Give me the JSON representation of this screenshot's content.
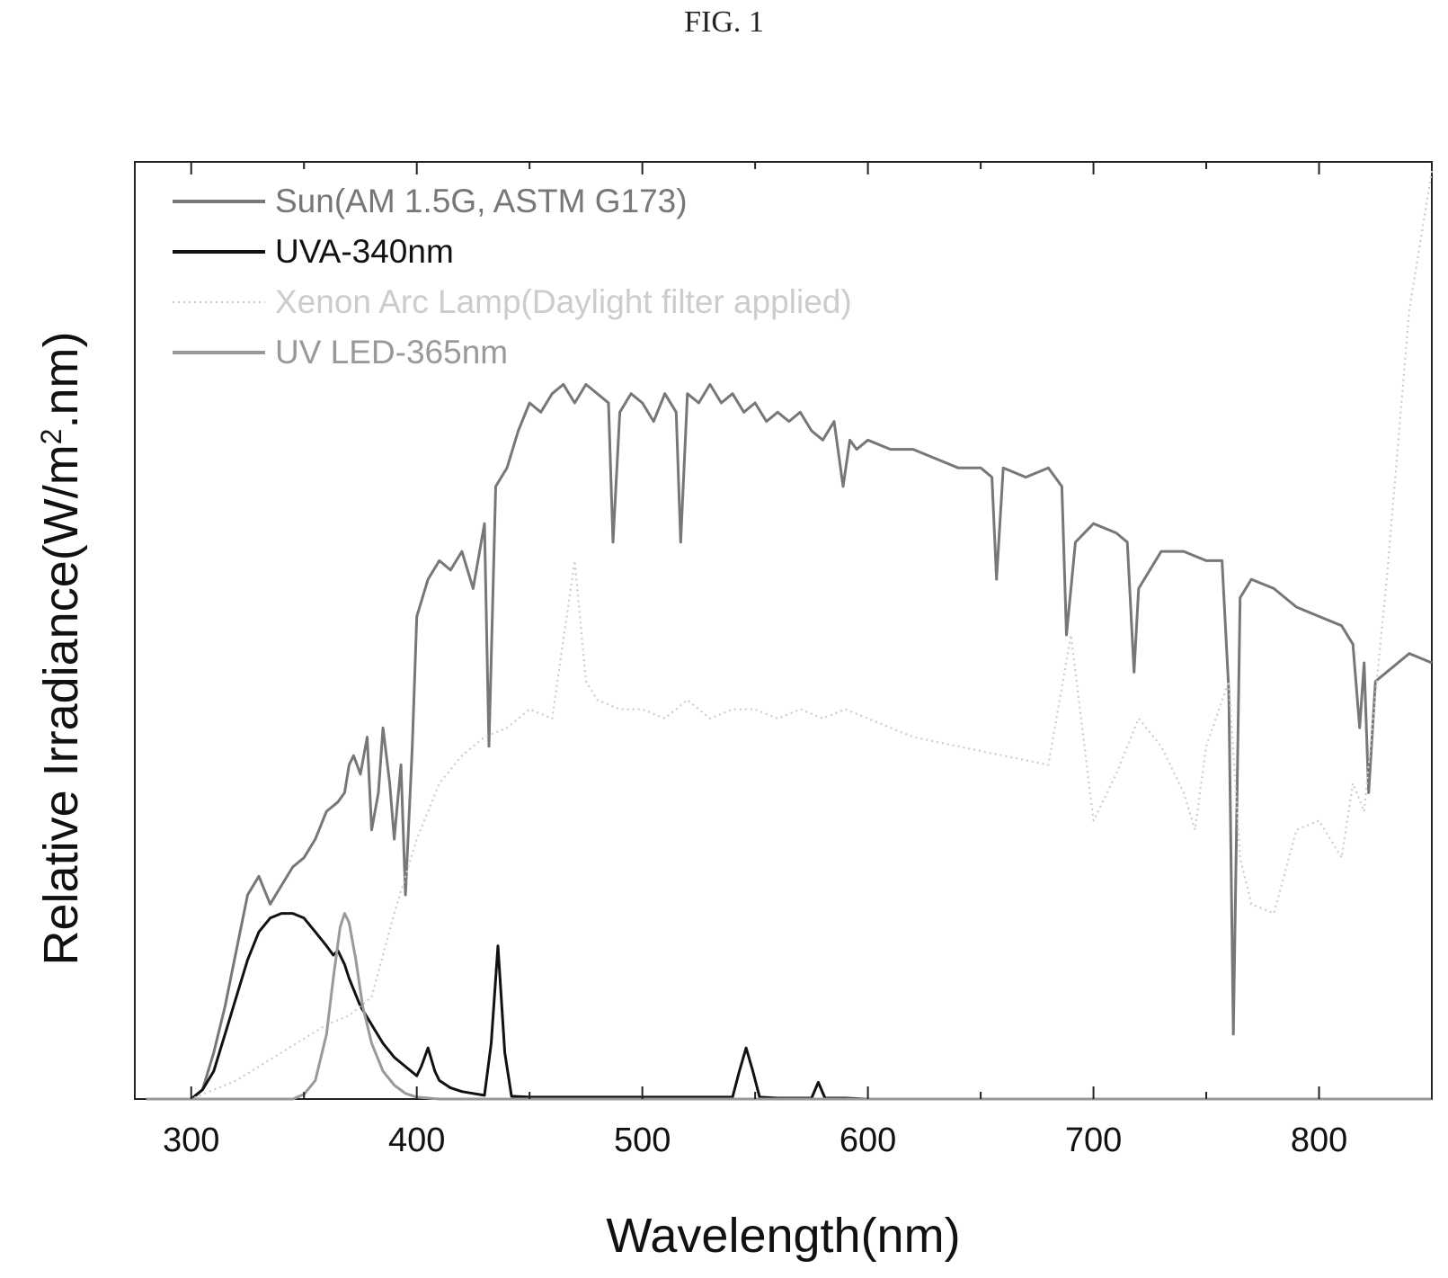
{
  "figure_label": "FIG. 1",
  "chart_data": {
    "type": "line",
    "title": "",
    "xlabel": "Wavelength(nm)",
    "ylabel_main": "Relative Irradiance(W/m",
    "ylabel_sup": "2",
    "ylabel_tail": ".nm)",
    "xlim": [
      275,
      850
    ],
    "ylim": [
      0,
      1.0
    ],
    "x_ticks": [
      300,
      400,
      500,
      600,
      700,
      800
    ],
    "y_tick_labels_shown": false,
    "grid": false,
    "legend_position": "top-left",
    "series": [
      {
        "name": "Sun(AM 1.5G, ASTM G173)",
        "color": "#777777",
        "style": "solid",
        "x": [
          280,
          300,
          305,
          310,
          315,
          320,
          325,
          330,
          335,
          340,
          345,
          350,
          355,
          360,
          365,
          368,
          370,
          372,
          375,
          378,
          380,
          383,
          385,
          388,
          390,
          393,
          395,
          398,
          400,
          405,
          410,
          415,
          420,
          425,
          430,
          432,
          435,
          440,
          445,
          450,
          455,
          460,
          465,
          470,
          475,
          480,
          485,
          487,
          490,
          495,
          500,
          505,
          510,
          515,
          517,
          520,
          525,
          530,
          535,
          540,
          545,
          550,
          555,
          560,
          565,
          570,
          575,
          580,
          585,
          589,
          592,
          595,
          600,
          610,
          620,
          630,
          640,
          650,
          655,
          657,
          660,
          670,
          680,
          686,
          688,
          692,
          700,
          710,
          715,
          718,
          720,
          725,
          730,
          740,
          750,
          757,
          760,
          762,
          765,
          770,
          780,
          790,
          800,
          810,
          815,
          818,
          820,
          822,
          825,
          830,
          840,
          850
        ],
        "y": [
          0,
          0,
          0.01,
          0.05,
          0.1,
          0.16,
          0.22,
          0.24,
          0.21,
          0.23,
          0.25,
          0.26,
          0.28,
          0.31,
          0.32,
          0.33,
          0.36,
          0.37,
          0.35,
          0.39,
          0.29,
          0.33,
          0.4,
          0.34,
          0.28,
          0.36,
          0.22,
          0.38,
          0.52,
          0.56,
          0.58,
          0.57,
          0.59,
          0.55,
          0.62,
          0.38,
          0.66,
          0.68,
          0.72,
          0.75,
          0.74,
          0.76,
          0.77,
          0.75,
          0.77,
          0.76,
          0.75,
          0.6,
          0.74,
          0.76,
          0.75,
          0.73,
          0.76,
          0.74,
          0.6,
          0.76,
          0.75,
          0.77,
          0.75,
          0.76,
          0.74,
          0.75,
          0.73,
          0.74,
          0.73,
          0.74,
          0.72,
          0.71,
          0.73,
          0.66,
          0.71,
          0.7,
          0.71,
          0.7,
          0.7,
          0.69,
          0.68,
          0.68,
          0.67,
          0.56,
          0.68,
          0.67,
          0.68,
          0.66,
          0.5,
          0.6,
          0.62,
          0.61,
          0.6,
          0.46,
          0.55,
          0.57,
          0.59,
          0.59,
          0.58,
          0.58,
          0.44,
          0.07,
          0.54,
          0.56,
          0.55,
          0.53,
          0.52,
          0.51,
          0.49,
          0.4,
          0.47,
          0.33,
          0.45,
          0.46,
          0.48,
          0.47
        ]
      },
      {
        "name": "UVA-340nm",
        "color": "#111111",
        "style": "solid",
        "x": [
          280,
          300,
          305,
          310,
          315,
          320,
          325,
          330,
          335,
          340,
          345,
          350,
          355,
          360,
          363,
          365,
          368,
          370,
          375,
          380,
          385,
          390,
          395,
          400,
          402,
          405,
          408,
          410,
          415,
          420,
          425,
          430,
          433,
          436,
          439,
          442,
          450,
          500,
          540,
          543,
          546,
          549,
          552,
          560,
          575,
          578,
          581,
          590,
          600,
          700,
          850
        ],
        "y": [
          0,
          0,
          0.01,
          0.03,
          0.07,
          0.11,
          0.15,
          0.18,
          0.195,
          0.2,
          0.2,
          0.195,
          0.18,
          0.165,
          0.155,
          0.16,
          0.145,
          0.13,
          0.1,
          0.08,
          0.06,
          0.045,
          0.035,
          0.025,
          0.035,
          0.055,
          0.03,
          0.02,
          0.012,
          0.008,
          0.006,
          0.004,
          0.06,
          0.165,
          0.05,
          0.003,
          0.002,
          0.002,
          0.002,
          0.03,
          0.055,
          0.03,
          0.002,
          0.001,
          0.001,
          0.018,
          0.001,
          0.001,
          0,
          0,
          0
        ]
      },
      {
        "name": "Xenon Arc Lamp(Daylight filter applied)",
        "color": "#cccccc",
        "style": "dotted",
        "x": [
          280,
          300,
          320,
          340,
          360,
          370,
          380,
          390,
          400,
          410,
          420,
          430,
          440,
          450,
          460,
          470,
          475,
          480,
          490,
          500,
          510,
          520,
          530,
          540,
          550,
          560,
          570,
          580,
          590,
          600,
          620,
          640,
          660,
          680,
          690,
          700,
          710,
          720,
          730,
          740,
          745,
          750,
          760,
          765,
          770,
          780,
          790,
          800,
          810,
          815,
          820,
          830,
          840,
          850
        ],
        "y": [
          0,
          0,
          0.02,
          0.05,
          0.08,
          0.09,
          0.11,
          0.2,
          0.28,
          0.34,
          0.37,
          0.39,
          0.4,
          0.42,
          0.41,
          0.58,
          0.45,
          0.43,
          0.42,
          0.42,
          0.41,
          0.43,
          0.41,
          0.42,
          0.42,
          0.41,
          0.42,
          0.41,
          0.42,
          0.41,
          0.39,
          0.38,
          0.37,
          0.36,
          0.5,
          0.3,
          0.35,
          0.41,
          0.38,
          0.33,
          0.29,
          0.38,
          0.45,
          0.26,
          0.21,
          0.2,
          0.29,
          0.3,
          0.26,
          0.34,
          0.31,
          0.56,
          0.85,
          1.0
        ]
      },
      {
        "name": "UV LED-365nm",
        "color": "#999999",
        "style": "solid",
        "x": [
          280,
          345,
          350,
          355,
          360,
          363,
          366,
          368,
          370,
          373,
          376,
          380,
          385,
          390,
          395,
          400,
          410,
          850
        ],
        "y": [
          0,
          0,
          0.005,
          0.02,
          0.07,
          0.13,
          0.185,
          0.2,
          0.19,
          0.15,
          0.1,
          0.06,
          0.03,
          0.015,
          0.006,
          0.002,
          0,
          0
        ]
      }
    ]
  }
}
